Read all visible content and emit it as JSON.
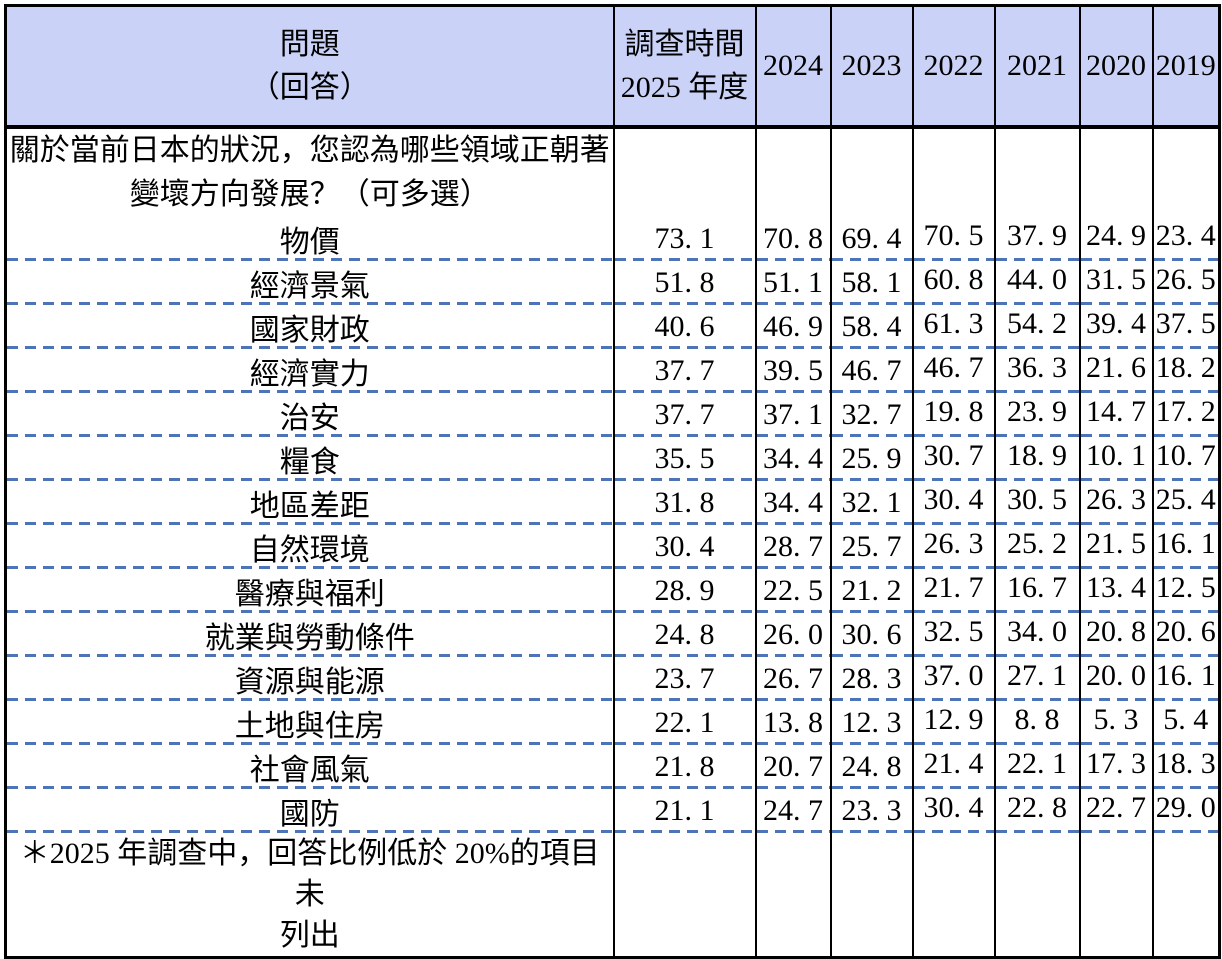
{
  "chart_data": {
    "type": "table",
    "title": "關於當前日本的狀況，您認為哪些領域正朝著變壞方向發展？（可多選）",
    "header": {
      "question_col": [
        "問題",
        "（回答）"
      ],
      "survey_col": [
        "調查時間",
        "2025 年度"
      ],
      "year_columns": [
        "2024",
        "2023",
        "2022",
        "2021",
        "2020",
        "2019"
      ]
    },
    "categories": [
      "2025",
      "2024",
      "2023",
      "2022",
      "2021",
      "2020",
      "2019"
    ],
    "question_lines": [
      "關於當前日本的狀況，您認為哪些領域正朝著",
      "變壞方向發展？（可多選）"
    ],
    "rows": [
      {
        "label": "物價",
        "values": [
          73.1,
          70.8,
          69.4,
          70.5,
          37.9,
          24.9,
          23.4
        ]
      },
      {
        "label": "經濟景氣",
        "values": [
          51.8,
          51.1,
          58.1,
          60.8,
          44.0,
          31.5,
          26.5
        ]
      },
      {
        "label": "國家財政",
        "values": [
          40.6,
          46.9,
          58.4,
          61.3,
          54.2,
          39.4,
          37.5
        ]
      },
      {
        "label": "經濟實力",
        "values": [
          37.7,
          39.5,
          46.7,
          46.7,
          36.3,
          21.6,
          18.2
        ]
      },
      {
        "label": "治安",
        "values": [
          37.7,
          37.1,
          32.7,
          19.8,
          23.9,
          14.7,
          17.2
        ]
      },
      {
        "label": "糧食",
        "values": [
          35.5,
          34.4,
          25.9,
          30.7,
          18.9,
          10.1,
          10.7
        ]
      },
      {
        "label": "地區差距",
        "values": [
          31.8,
          34.4,
          32.1,
          30.4,
          30.5,
          26.3,
          25.4
        ]
      },
      {
        "label": "自然環境",
        "values": [
          30.4,
          28.7,
          25.7,
          26.3,
          25.2,
          21.5,
          16.1
        ]
      },
      {
        "label": "醫療與福利",
        "values": [
          28.9,
          22.5,
          21.2,
          21.7,
          16.7,
          13.4,
          12.5
        ]
      },
      {
        "label": "就業與勞動條件",
        "values": [
          24.8,
          26.0,
          30.6,
          32.5,
          34.0,
          20.8,
          20.6
        ]
      },
      {
        "label": "資源與能源",
        "values": [
          23.7,
          26.7,
          28.3,
          37.0,
          27.1,
          20.0,
          16.1
        ]
      },
      {
        "label": "土地與住房",
        "values": [
          22.1,
          13.8,
          12.3,
          12.9,
          8.8,
          5.3,
          5.4
        ]
      },
      {
        "label": "社會風氣",
        "values": [
          21.8,
          20.7,
          24.8,
          21.4,
          22.1,
          17.3,
          18.3
        ]
      },
      {
        "label": "國防",
        "values": [
          21.1,
          24.7,
          23.3,
          30.4,
          22.8,
          22.7,
          29.0
        ]
      }
    ],
    "footnote_lines": [
      "＊2025 年調查中，回答比例低於 20%的項目未",
      "列出"
    ],
    "footnote": "＊2025 年調查中，回答比例低於 20%的項目未列出"
  },
  "colors": {
    "header_bg": "#CAD3F7",
    "dash_line": "#4E74B8",
    "border": "#000000",
    "text": "#000000"
  }
}
